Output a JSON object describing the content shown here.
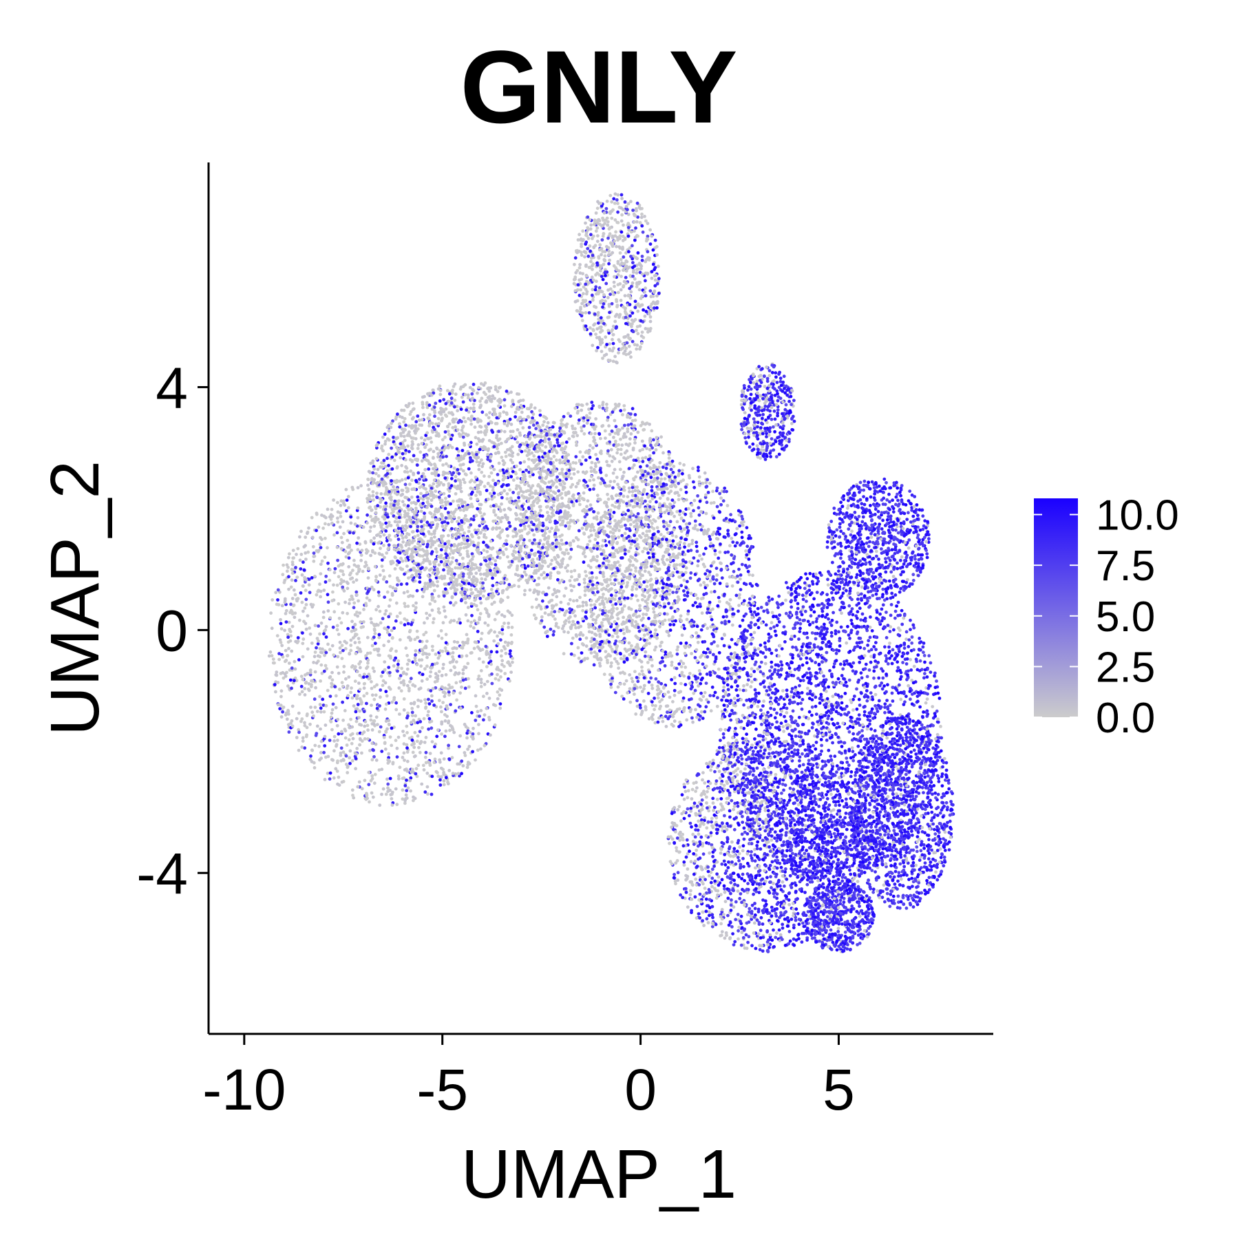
{
  "chart_data": {
    "type": "scatter",
    "title": "GNLY",
    "xlabel": "UMAP_1",
    "ylabel": "UMAP_2",
    "xlim": [
      -10.9,
      8.9
    ],
    "ylim": [
      -6.65,
      7.7
    ],
    "x_ticks": [
      {
        "value": -10,
        "label": "-10"
      },
      {
        "value": -5,
        "label": "-5"
      },
      {
        "value": 0,
        "label": "0"
      },
      {
        "value": 5,
        "label": "5"
      }
    ],
    "y_ticks": [
      {
        "value": -4,
        "label": "-4"
      },
      {
        "value": 0,
        "label": "0"
      },
      {
        "value": 4,
        "label": "4"
      }
    ],
    "grid": false,
    "legend": {
      "placement": "right",
      "min": 0,
      "max": 10.8,
      "colors": {
        "low": "#cccccc",
        "high": "#1a00ff"
      },
      "breaks": [
        {
          "value": 0.0,
          "label": "0.0"
        },
        {
          "value": 2.5,
          "label": "2.5"
        },
        {
          "value": 5.0,
          "label": "5.0"
        },
        {
          "value": 7.5,
          "label": "7.5"
        },
        {
          "value": 10.0,
          "label": "10.0"
        }
      ]
    },
    "regions": [
      {
        "x": -6.3,
        "y": -0.2,
        "rx": 3.1,
        "ry": 2.7,
        "share": 0.8
      },
      {
        "x": -4.3,
        "y": 2.3,
        "rx": 2.6,
        "ry": 1.8,
        "share": 0.8
      },
      {
        "x": -1.0,
        "y": 1.6,
        "rx": 2.2,
        "ry": 2.2,
        "share": 0.6
      },
      {
        "x": 0.8,
        "y": 0.6,
        "rx": 2.2,
        "ry": 2.2,
        "share": 0.55
      },
      {
        "x": -0.6,
        "y": 5.8,
        "rx": 1.1,
        "ry": 1.4,
        "share": 0.28
      },
      {
        "x": 3.2,
        "y": 3.6,
        "rx": 0.7,
        "ry": 0.8,
        "share": 0.15
      },
      {
        "x": 6.0,
        "y": 1.5,
        "rx": 1.3,
        "ry": 1.0,
        "share": 0.28
      },
      {
        "x": 4.8,
        "y": -1.6,
        "rx": 2.8,
        "ry": 2.6,
        "share": 1.0
      },
      {
        "x": 3.2,
        "y": -3.5,
        "rx": 2.5,
        "ry": 1.8,
        "share": 0.7
      },
      {
        "x": 6.6,
        "y": -3.0,
        "rx": 1.3,
        "ry": 1.6,
        "share": 0.45
      },
      {
        "x": 5.0,
        "y": -4.7,
        "rx": 0.9,
        "ry": 0.6,
        "share": 0.18
      }
    ],
    "expression_trend": {
      "low_x": 0.0,
      "high_x": 4.0
    }
  }
}
